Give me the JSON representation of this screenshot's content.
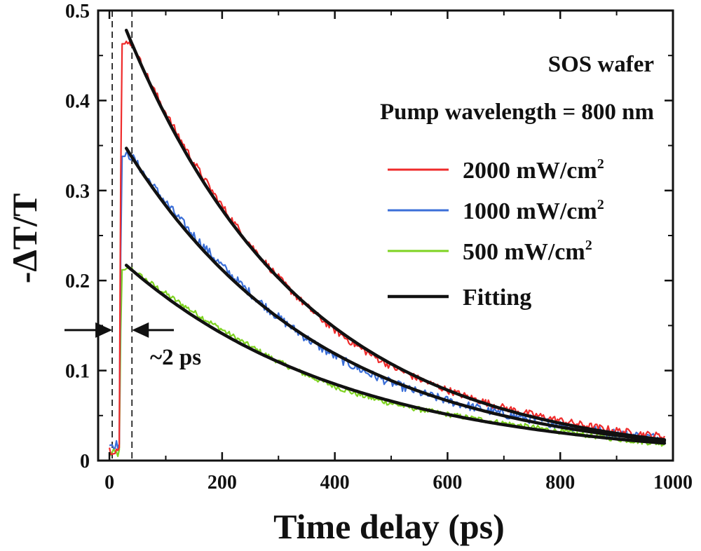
{
  "chart_data": {
    "type": "line",
    "xlabel": "Time delay (ps)",
    "ylabel": "-ΔT/T",
    "xlim": [
      -20,
      1000
    ],
    "ylim": [
      0,
      0.5
    ],
    "xticks": [
      0,
      200,
      400,
      600,
      800,
      1000
    ],
    "xtick_labels": [
      "0",
      "200",
      "400",
      "600",
      "800",
      "1000"
    ],
    "yticks": [
      0,
      0.1,
      0.2,
      0.3,
      0.4,
      0.5
    ],
    "ytick_labels": [
      "0",
      "0.1",
      "0.2",
      "0.3",
      "0.4",
      "0.5"
    ],
    "annotations": {
      "sample": "SOS wafer",
      "pump": "Pump wavelength = 800 nm",
      "rise_time": "~2 ps"
    },
    "markers": {
      "dashed_x": [
        5,
        40
      ],
      "arrow_y": 0.145
    },
    "legend_position": "right",
    "series": [
      {
        "name": "2000 mW/cm2",
        "legend_main": "2000 mW/cm",
        "legend_sup": "2",
        "color": "#ef2b2b",
        "onset_x": 18,
        "peak_x": 28,
        "peak": 0.463,
        "pre_level": 0.012,
        "fit": {
          "x0": 30,
          "amp": 0.478,
          "tau": 315,
          "offset": 0.0,
          "x_end": 985
        },
        "noise": 0.004,
        "tail_end": 0.028
      },
      {
        "name": "1000 mW/cm2",
        "legend_main": "1000 mW/cm",
        "legend_sup": "2",
        "color": "#3b6fd8",
        "onset_x": 18,
        "peak_x": 30,
        "peak": 0.338,
        "pre_level": 0.018,
        "fit": {
          "x0": 30,
          "amp": 0.347,
          "tau": 345,
          "offset": 0.0,
          "x_end": 985
        },
        "noise": 0.005,
        "tail_end": 0.026
      },
      {
        "name": "500 mW/cm2",
        "legend_main": "500 mW/cm",
        "legend_sup": "2",
        "color": "#7ed321",
        "onset_x": 18,
        "peak_x": 28,
        "peak": 0.212,
        "pre_level": 0.008,
        "fit": {
          "x0": 30,
          "amp": 0.217,
          "tau": 395,
          "offset": 0.0,
          "x_end": 985
        },
        "noise": 0.003,
        "tail_end": 0.02
      },
      {
        "name": "Fitting",
        "legend_main": "Fitting",
        "legend_sup": "",
        "color": "#111111"
      }
    ]
  }
}
